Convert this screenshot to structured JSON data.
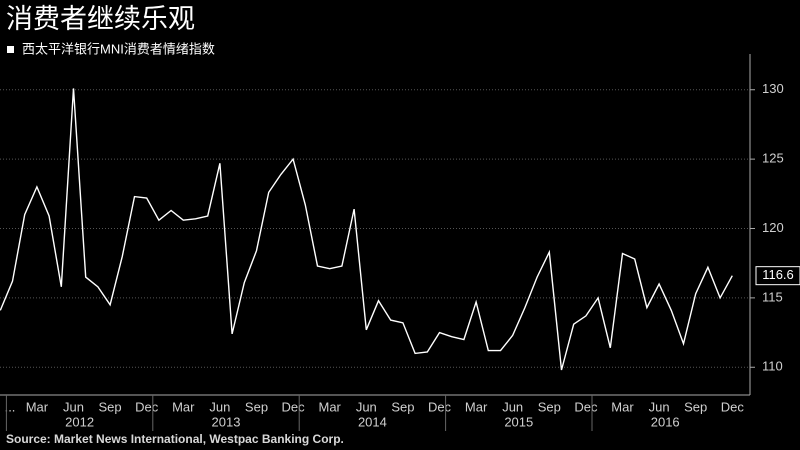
{
  "chart_data": {
    "type": "line",
    "title": "消费者继续乐观",
    "source": "Source: Market News International, Westpac Banking Corp.",
    "x": [
      "2011-12",
      "2012-01",
      "2012-02",
      "2012-03",
      "2012-04",
      "2012-05",
      "2012-06",
      "2012-07",
      "2012-08",
      "2012-09",
      "2012-10",
      "2012-11",
      "2012-12",
      "2013-01",
      "2013-02",
      "2013-03",
      "2013-04",
      "2013-05",
      "2013-06",
      "2013-07",
      "2013-08",
      "2013-09",
      "2013-10",
      "2013-11",
      "2013-12",
      "2014-01",
      "2014-02",
      "2014-03",
      "2014-04",
      "2014-05",
      "2014-06",
      "2014-07",
      "2014-08",
      "2014-09",
      "2014-10",
      "2014-11",
      "2014-12",
      "2015-01",
      "2015-02",
      "2015-03",
      "2015-04",
      "2015-05",
      "2015-06",
      "2015-07",
      "2015-08",
      "2015-09",
      "2015-10",
      "2015-11",
      "2015-12",
      "2016-01",
      "2016-02",
      "2016-03",
      "2016-04",
      "2016-05",
      "2016-06",
      "2016-07",
      "2016-08",
      "2016-09",
      "2016-10",
      "2016-11",
      "2016-12"
    ],
    "series": [
      {
        "name": "西太平洋银行MNI消费者情绪指数",
        "color": "#ffffff",
        "values": [
          114.1,
          116.2,
          121.0,
          123.0,
          120.9,
          115.8,
          130.1,
          116.5,
          115.8,
          114.5,
          118.0,
          122.3,
          122.2,
          120.6,
          121.3,
          120.6,
          120.7,
          120.9,
          124.7,
          112.4,
          116.1,
          118.4,
          122.6,
          123.9,
          125.0,
          121.7,
          117.3,
          117.1,
          117.3,
          121.4,
          112.7,
          114.8,
          113.4,
          113.2,
          111.0,
          111.1,
          112.5,
          112.2,
          112.0,
          114.7,
          111.2,
          111.2,
          112.3,
          114.3,
          116.5,
          118.3,
          109.8,
          113.1,
          113.7,
          115.0,
          111.4,
          118.2,
          117.8,
          114.3,
          116.0,
          114.1,
          111.7,
          115.3,
          117.2,
          115.0,
          116.6
        ]
      }
    ],
    "xticks": [
      {
        "value": "2011-12",
        "label": "..."
      },
      {
        "value": "2012-03",
        "label": "Mar"
      },
      {
        "value": "2012-06",
        "label": "Jun"
      },
      {
        "value": "2012-09",
        "label": "Sep"
      },
      {
        "value": "2012-12",
        "label": "Dec"
      },
      {
        "value": "2013-03",
        "label": "Mar"
      },
      {
        "value": "2013-06",
        "label": "Jun"
      },
      {
        "value": "2013-09",
        "label": "Sep"
      },
      {
        "value": "2013-12",
        "label": "Dec"
      },
      {
        "value": "2014-03",
        "label": "Mar"
      },
      {
        "value": "2014-06",
        "label": "Jun"
      },
      {
        "value": "2014-09",
        "label": "Sep"
      },
      {
        "value": "2014-12",
        "label": "Dec"
      },
      {
        "value": "2015-03",
        "label": "Mar"
      },
      {
        "value": "2015-06",
        "label": "Jun"
      },
      {
        "value": "2015-09",
        "label": "Sep"
      },
      {
        "value": "2015-12",
        "label": "Dec"
      },
      {
        "value": "2016-03",
        "label": "Mar"
      },
      {
        "value": "2016-06",
        "label": "Jun"
      },
      {
        "value": "2016-09",
        "label": "Sep"
      },
      {
        "value": "2016-12",
        "label": "Dec"
      }
    ],
    "year_labels": [
      "2012",
      "2013",
      "2014",
      "2015",
      "2016"
    ],
    "ylim": [
      108,
      132
    ],
    "yticks": [
      110,
      115,
      120,
      125,
      130
    ],
    "grid": true,
    "y_axis_side": "right"
  }
}
